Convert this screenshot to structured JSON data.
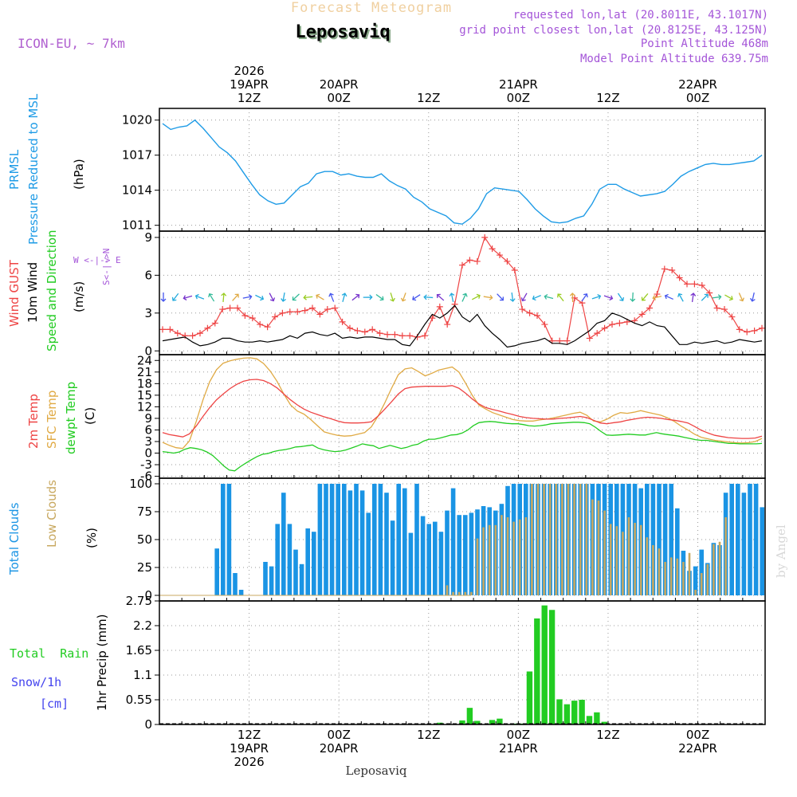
{
  "header": {
    "forecast_title": "Forecast Meteogram",
    "location": "Leposaviq",
    "model": "ICON-EU, ~ 7km",
    "requested": "requested lon,lat (20.8011E, 43.1017N)",
    "grid_point": "grid point closest lon,lat (20.8125E, 43.125N)",
    "point_altitude": "Point Altitude 468m",
    "model_altitude": "Model Point Altitude 639.75m",
    "footer_location": "Leposaviq",
    "watermark": "by Angel"
  },
  "colors": {
    "pressure": "#1e9be6",
    "gust": "#ee4444",
    "wind": "#000000",
    "temp2m": "#ee4444",
    "sfc": "#e0aa44",
    "dew": "#22cc22",
    "cloud_total": "#1a94e4",
    "cloud_low": "#c8a860",
    "rain": "#22cc22",
    "violet": "#a455d8",
    "snow": "#4444ee"
  },
  "time_axis": {
    "hours": 81,
    "top_labels": [
      {
        "hour": 12,
        "lines": [
          "2026",
          "19APR",
          "12Z"
        ]
      },
      {
        "hour": 24,
        "lines": [
          "20APR",
          "00Z"
        ]
      },
      {
        "hour": 36,
        "lines": [
          "12Z"
        ]
      },
      {
        "hour": 48,
        "lines": [
          "21APR",
          "00Z"
        ]
      },
      {
        "hour": 60,
        "lines": [
          "12Z"
        ]
      },
      {
        "hour": 72,
        "lines": [
          "22APR",
          "00Z"
        ]
      }
    ],
    "bottom_labels": [
      {
        "hour": 12,
        "lines": [
          "12Z",
          "19APR",
          "2026"
        ]
      },
      {
        "hour": 24,
        "lines": [
          "00Z",
          "20APR"
        ]
      },
      {
        "hour": 36,
        "lines": [
          "12Z"
        ]
      },
      {
        "hour": 48,
        "lines": [
          "00Z",
          "21APR"
        ]
      },
      {
        "hour": 60,
        "lines": [
          "12Z"
        ]
      },
      {
        "hour": 72,
        "lines": [
          "00Z",
          "22APR"
        ]
      }
    ]
  },
  "panel_titles": {
    "pressure": {
      "line1": "PRMSL",
      "line2": "Pressure Reduced to MSL",
      "unit": "(hPa)"
    },
    "wind": {
      "gust": "Wind GUST",
      "wind10": "10m Wind",
      "speed_dir": "Speed and Direction",
      "unit": "(m/s)",
      "compass_we": "W <-|-> E",
      "compass_sn": "S<-|->N"
    },
    "temp": {
      "t2m": "2m Temp",
      "sfc": "SFC Temp",
      "dew": "dewpt Temp",
      "unit": "(C)"
    },
    "clouds": {
      "total": "Total Clouds",
      "low": "Low Clouds",
      "unit": "(%)"
    },
    "precip": {
      "axis": "1hr Precip (mm)",
      "rain": "Total  Rain",
      "snow": "Snow/1h",
      "snow_unit": "[cm]"
    }
  },
  "chart_data": [
    {
      "type": "line",
      "title": "PRMSL Pressure Reduced to MSL",
      "ylabel": "(hPa)",
      "ylim": [
        1010.5,
        1021
      ],
      "yticks": [
        "1011",
        "1014",
        "1017",
        "1020"
      ],
      "series": [
        {
          "name": "PRMSL",
          "values": [
            1019.7,
            1019.2,
            1019.4,
            1019.5,
            1020.0,
            1019.3,
            1018.5,
            1017.7,
            1017.2,
            1016.5,
            1015.5,
            1014.5,
            1013.6,
            1013.1,
            1012.8,
            1012.9,
            1013.6,
            1014.3,
            1014.6,
            1015.4,
            1015.6,
            1015.6,
            1015.3,
            1015.4,
            1015.2,
            1015.1,
            1015.1,
            1015.4,
            1014.8,
            1014.4,
            1014.1,
            1013.4,
            1013.0,
            1012.4,
            1012.1,
            1011.8,
            1011.2,
            1011.1,
            1011.6,
            1012.4,
            1013.7,
            1014.2,
            1014.1,
            1014.0,
            1013.9,
            1013.2,
            1012.4,
            1011.8,
            1011.3,
            1011.2,
            1011.3,
            1011.6,
            1011.8,
            1012.8,
            1014.1,
            1014.5,
            1014.5,
            1014.1,
            1013.8,
            1013.5,
            1013.6,
            1013.7,
            1013.9,
            1014.5,
            1015.2,
            1015.6,
            1015.9,
            1016.2,
            1016.3,
            1016.2,
            1016.2,
            1016.3,
            1016.4,
            1016.5,
            1017.0
          ]
        }
      ]
    },
    {
      "type": "line",
      "title": "Wind GUST / 10m Wind Speed and Direction",
      "ylabel": "(m/s)",
      "ylim": [
        -0.3,
        9.5
      ],
      "yticks": [
        "0",
        "3",
        "6",
        "9"
      ],
      "series": [
        {
          "name": "Wind GUST",
          "values": [
            1.7,
            1.7,
            1.4,
            1.2,
            1.2,
            1.4,
            1.8,
            2.2,
            3.3,
            3.4,
            3.4,
            2.8,
            2.6,
            2.1,
            1.9,
            2.7,
            3.0,
            3.1,
            3.1,
            3.2,
            3.4,
            2.9,
            3.3,
            3.4,
            2.3,
            1.8,
            1.6,
            1.5,
            1.7,
            1.4,
            1.3,
            1.3,
            1.2,
            1.2,
            1.1,
            1.2,
            2.6,
            3.5,
            2.1,
            3.7,
            6.8,
            7.2,
            7.1,
            9.0,
            8.1,
            7.6,
            7.1,
            6.4,
            3.3,
            3.0,
            2.8,
            2.1,
            0.8,
            0.8,
            0.8,
            4.2,
            3.8,
            1.0,
            1.4,
            1.8,
            2.1,
            2.2,
            2.3,
            2.4,
            2.9,
            3.4,
            4.5,
            6.5,
            6.4,
            5.8,
            5.3,
            5.3,
            5.2,
            4.6,
            3.4,
            3.3,
            2.7,
            1.7,
            1.5,
            1.6,
            1.8
          ]
        },
        {
          "name": "10m Wind",
          "values": [
            0.8,
            0.9,
            1.0,
            1.1,
            0.7,
            0.4,
            0.5,
            0.7,
            1.0,
            1.0,
            0.8,
            0.7,
            0.7,
            0.8,
            0.7,
            0.8,
            0.9,
            1.2,
            1.0,
            1.4,
            1.5,
            1.3,
            1.2,
            1.4,
            1.0,
            1.1,
            1.0,
            1.1,
            1.1,
            1.0,
            0.9,
            0.9,
            0.5,
            0.4,
            1.2,
            2.1,
            2.9,
            2.6,
            3.0,
            3.6,
            2.7,
            2.3,
            2.9,
            2.0,
            1.4,
            0.9,
            0.3,
            0.4,
            0.6,
            0.7,
            0.8,
            1.0,
            0.6,
            0.6,
            0.5,
            0.8,
            1.2,
            1.6,
            2.2,
            2.4,
            3.0,
            2.8,
            2.5,
            2.2,
            2.0,
            2.3,
            2.0,
            1.9,
            1.2,
            0.5,
            0.5,
            0.7,
            0.6,
            0.7,
            0.8,
            0.6,
            0.7,
            0.9,
            0.8,
            0.7,
            0.8
          ]
        }
      ]
    },
    {
      "type": "line",
      "title": "2m Temp / SFC Temp / dewpt Temp",
      "ylabel": "(C)",
      "ylim": [
        -6.5,
        25.5
      ],
      "yticks": [
        "-6",
        "-3",
        "0",
        "3",
        "6",
        "9",
        "12",
        "15",
        "18",
        "21",
        "24"
      ],
      "series": [
        {
          "name": "2m Temp",
          "values": [
            5.3,
            4.8,
            4.5,
            4.2,
            5.0,
            7.0,
            9.5,
            11.8,
            13.8,
            15.3,
            16.7,
            17.8,
            18.6,
            19.0,
            19.1,
            18.8,
            18.0,
            16.9,
            15.3,
            13.8,
            12.5,
            11.4,
            10.6,
            10.0,
            9.4,
            8.9,
            8.3,
            7.9,
            7.8,
            7.8,
            7.9,
            8.1,
            9.6,
            11.4,
            13.3,
            15.3,
            16.7,
            17.1,
            17.2,
            17.3,
            17.3,
            17.3,
            17.3,
            17.5,
            16.8,
            15.5,
            14.0,
            12.7,
            11.8,
            11.3,
            10.9,
            10.4,
            10.0,
            9.5,
            9.2,
            9.0,
            8.9,
            8.8,
            8.8,
            9.0,
            9.1,
            9.3,
            9.5,
            9.2,
            8.5,
            7.8,
            7.6,
            7.9,
            8.1,
            8.5,
            8.8,
            9.1,
            9.3,
            9.2,
            9.0,
            8.7,
            8.5,
            8.2,
            7.8,
            6.9,
            5.9,
            5.2,
            4.6,
            4.3,
            4.0,
            3.9,
            3.8,
            3.8,
            3.9,
            4.4
          ]
        },
        {
          "name": "SFC Temp",
          "values": [
            2.8,
            2.0,
            1.4,
            1.2,
            3.2,
            8.2,
            13.8,
            18.5,
            21.6,
            23.3,
            23.9,
            24.3,
            24.6,
            24.7,
            24.4,
            23.2,
            21.2,
            18.6,
            15.3,
            12.5,
            10.9,
            10.1,
            8.7,
            7.1,
            5.5,
            5.0,
            4.6,
            4.4,
            4.5,
            4.9,
            5.3,
            6.8,
            9.6,
            13.0,
            16.8,
            20.3,
            21.8,
            22.1,
            21.1,
            20.0,
            20.7,
            21.5,
            21.9,
            22.3,
            21.0,
            18.1,
            14.9,
            12.4,
            11.4,
            10.5,
            9.9,
            9.3,
            8.7,
            8.4,
            8.3,
            8.3,
            8.6,
            8.8,
            9.1,
            9.5,
            9.9,
            10.3,
            10.6,
            9.8,
            8.3,
            8.1,
            8.8,
            9.8,
            10.5,
            10.3,
            10.6,
            11.0,
            10.6,
            10.2,
            9.8,
            9.1,
            8.2,
            7.0,
            6.0,
            4.9,
            4.1,
            3.7,
            3.3,
            3.1,
            2.9,
            2.7,
            2.6,
            2.7,
            3.0,
            3.8
          ]
        },
        {
          "name": "dewpt Temp",
          "values": [
            0.4,
            0.2,
            0.0,
            0.3,
            1.0,
            1.4,
            1.2,
            0.9,
            0.3,
            -0.6,
            -1.9,
            -3.3,
            -4.4,
            -4.6,
            -3.5,
            -2.6,
            -1.7,
            -0.9,
            -0.3,
            -0.1,
            0.4,
            0.7,
            0.9,
            1.2,
            1.6,
            1.7,
            1.9,
            2.1,
            1.3,
            0.9,
            0.6,
            0.4,
            0.5,
            0.8,
            1.3,
            1.8,
            2.4,
            2.1,
            1.9,
            1.2,
            1.6,
            2.0,
            1.6,
            1.2,
            1.5,
            2.0,
            2.3,
            3.1,
            3.6,
            3.6,
            3.9,
            4.3,
            4.7,
            4.8,
            5.2,
            6.0,
            7.1,
            7.9,
            8.1,
            8.2,
            8.1,
            7.9,
            7.7,
            7.6,
            7.6,
            7.4,
            7.1,
            7.0,
            7.1,
            7.3,
            7.6,
            7.7,
            7.8,
            7.9,
            8.0,
            8.0,
            7.9,
            7.6,
            6.7,
            5.6,
            4.7,
            4.6,
            4.7,
            4.8,
            4.9,
            4.8,
            4.7,
            4.7,
            5.0,
            5.3,
            5.0,
            4.8,
            4.6,
            4.4,
            4.1,
            3.8,
            3.5,
            3.3,
            3.3,
            3.1,
            2.9,
            2.7,
            2.5,
            2.5,
            2.4,
            2.4,
            2.4,
            2.4,
            2.5
          ]
        }
      ]
    },
    {
      "type": "bar",
      "title": "Total Clouds / Low Clouds",
      "ylabel": "(%)",
      "ylim": [
        -5,
        105
      ],
      "yticks": [
        "0",
        "25",
        "50",
        "75",
        "100"
      ],
      "series": [
        {
          "name": "Total Clouds",
          "values": [
            0,
            0,
            0,
            0,
            0,
            0,
            0,
            0,
            0,
            42,
            100,
            100,
            20,
            5,
            0,
            0,
            0,
            30,
            26,
            64,
            92,
            64,
            41,
            28,
            60,
            57,
            100,
            100,
            100,
            100,
            100,
            94,
            100,
            94,
            74,
            100,
            100,
            92,
            67,
            100,
            96,
            56,
            100,
            71,
            64,
            66,
            57,
            76,
            96,
            72,
            72,
            74,
            77,
            80,
            79,
            76,
            82,
            98,
            100,
            100,
            100,
            100,
            100,
            100,
            100,
            100,
            100,
            100,
            100,
            100,
            100,
            100,
            100,
            100,
            100,
            100,
            100,
            100,
            100,
            96,
            100,
            100,
            100,
            100,
            100,
            78,
            40,
            22,
            26,
            41,
            29,
            47,
            45,
            92,
            100,
            100,
            92,
            100,
            100,
            79
          ]
        },
        {
          "name": "Low Clouds",
          "values": [
            0,
            0,
            0,
            0,
            0,
            0,
            0,
            0,
            0,
            0,
            0,
            0,
            0,
            0,
            0,
            0,
            0,
            0,
            0,
            0,
            0,
            0,
            0,
            0,
            0,
            0,
            0,
            0,
            0,
            0,
            0,
            0,
            0,
            0,
            0,
            0,
            0,
            0,
            0,
            0,
            0,
            0,
            0,
            0,
            0,
            0,
            0,
            9,
            3,
            3,
            3,
            3,
            51,
            61,
            63,
            63,
            72,
            70,
            66,
            68,
            70,
            100,
            100,
            100,
            100,
            100,
            100,
            100,
            100,
            100,
            100,
            86,
            85,
            76,
            64,
            62,
            57,
            70,
            65,
            63,
            52,
            45,
            42,
            30,
            34,
            33,
            30,
            38,
            5,
            20,
            28,
            46,
            48,
            70
          ]
        }
      ]
    },
    {
      "type": "bar",
      "title": "1hr Precip (mm)",
      "ylabel": "1hr Precip (mm)",
      "ylim": [
        0,
        2.75
      ],
      "yticks": [
        "0",
        "0.55",
        "1.1",
        "1.65",
        "2.2",
        "2.75"
      ],
      "series": [
        {
          "name": "Total Rain",
          "values": [
            0,
            0,
            0,
            0,
            0,
            0,
            0,
            0,
            0,
            0,
            0,
            0,
            0,
            0,
            0,
            0,
            0,
            0,
            0,
            0,
            0,
            0,
            0,
            0,
            0,
            0,
            0,
            0,
            0,
            0,
            0,
            0,
            0,
            0,
            0,
            0,
            0,
            0.04,
            0,
            0,
            0.09,
            0.37,
            0.08,
            0,
            0.1,
            0.13,
            0,
            0.02,
            0.02,
            1.18,
            2.36,
            2.65,
            2.55,
            0.56,
            0.45,
            0.53,
            0.55,
            0.19,
            0.27,
            0.06,
            0,
            0,
            0,
            0,
            0,
            0,
            0,
            0,
            0,
            0,
            0,
            0,
            0,
            0,
            0,
            0,
            0,
            0,
            0,
            0,
            0
          ]
        },
        {
          "name": "Snow/1h",
          "values": []
        }
      ]
    }
  ]
}
